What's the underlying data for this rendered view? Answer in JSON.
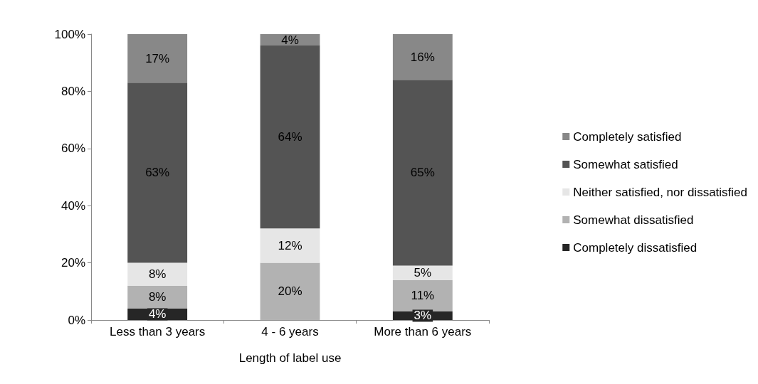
{
  "chart_data": {
    "type": "bar",
    "stacked": true,
    "xlabel": "Length of label use",
    "categories": [
      "Less than 3 years",
      "4 - 6 years",
      "More than 6 years"
    ],
    "series": [
      {
        "name": "Completely dissatisfied",
        "color": "#262626",
        "values": [
          4,
          null,
          3
        ],
        "value_labels": [
          "4%",
          null,
          "3%"
        ]
      },
      {
        "name": "Somewhat dissatisfied",
        "color": "#b2b2b2",
        "values": [
          8,
          20,
          11
        ],
        "value_labels": [
          "8%",
          "20%",
          "11%"
        ]
      },
      {
        "name": "Neither satisfied, nor dissatisfied",
        "color": "#e6e6e6",
        "values": [
          8,
          12,
          5
        ],
        "value_labels": [
          "8%",
          "12%",
          "5%"
        ]
      },
      {
        "name": "Somewhat satisfied",
        "color": "#545454",
        "values": [
          63,
          64,
          65
        ],
        "value_labels": [
          "63%",
          "64%",
          "65%"
        ]
      },
      {
        "name": "Completely satisfied",
        "color": "#888888",
        "values": [
          17,
          4,
          16
        ],
        "value_labels": [
          "17%",
          "4%",
          "16%"
        ]
      }
    ],
    "ylim": [
      0,
      100
    ],
    "yticks": [
      {
        "value": 0,
        "label": "0%"
      },
      {
        "value": 20,
        "label": "20%"
      },
      {
        "value": 40,
        "label": "40%"
      },
      {
        "value": 60,
        "label": "60%"
      },
      {
        "value": 80,
        "label": "80%"
      },
      {
        "value": 100,
        "label": "100%"
      }
    ],
    "grid": false,
    "legend": "right"
  }
}
